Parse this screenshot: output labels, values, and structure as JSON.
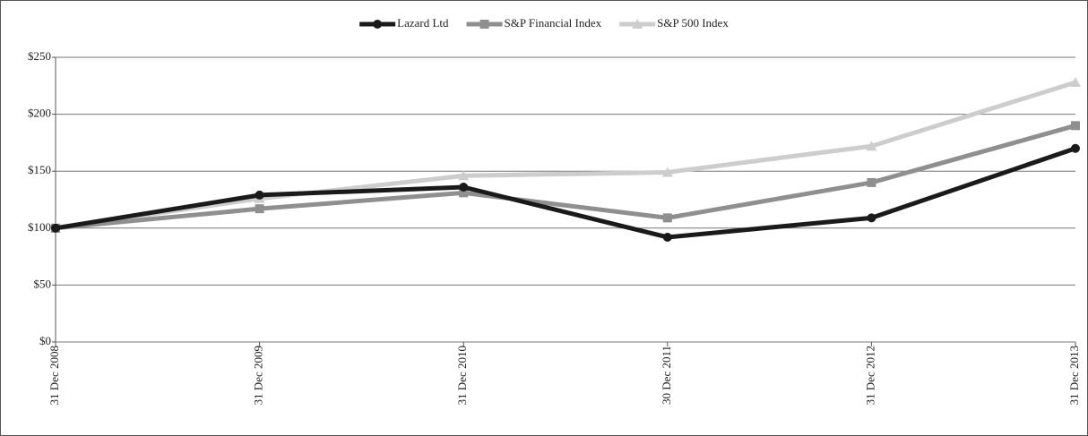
{
  "chart_data": {
    "type": "line",
    "categories": [
      "31 Dec 2008",
      "31 Dec 2009",
      "31 Dec 2010",
      "30 Dec 2011",
      "31 Dec 2012",
      "31 Dec 2013"
    ],
    "series": [
      {
        "name": "Lazard Ltd",
        "color": "#1a1a1a",
        "marker": "circle",
        "values": [
          100,
          129,
          136,
          92,
          109,
          170
        ]
      },
      {
        "name": "S&P Financial Index",
        "color": "#8f8f8f",
        "marker": "square",
        "values": [
          100,
          117,
          131,
          109,
          140,
          190
        ]
      },
      {
        "name": "S&P 500 Index",
        "color": "#cdcdcd",
        "marker": "triangle",
        "values": [
          100,
          126,
          146,
          149,
          172,
          228
        ]
      }
    ],
    "ylim": [
      0,
      250
    ],
    "yticks": [
      {
        "value": 0,
        "label": "$0"
      },
      {
        "value": 50,
        "label": "$50"
      },
      {
        "value": 100,
        "label": "$100"
      },
      {
        "value": 150,
        "label": "$150"
      },
      {
        "value": 200,
        "label": "$200"
      },
      {
        "value": 250,
        "label": "$250"
      }
    ],
    "grid": true,
    "legend": "top"
  }
}
